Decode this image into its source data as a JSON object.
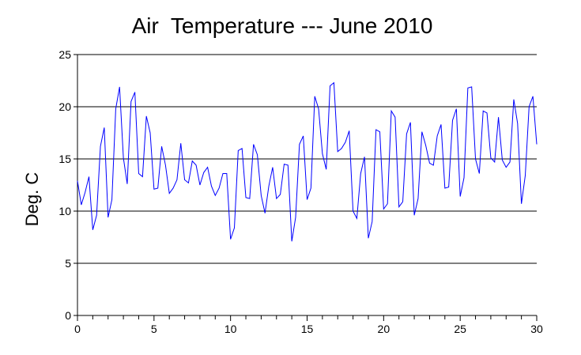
{
  "chart_data": {
    "type": "line",
    "title": "Air  Temperature --- June 2010",
    "xlabel": "",
    "ylabel": "Deg. C",
    "xlim": [
      0,
      30
    ],
    "ylim": [
      0,
      25
    ],
    "x_ticks": [
      "0",
      "5",
      "10",
      "15",
      "20",
      "25",
      "30"
    ],
    "y_ticks": [
      "0",
      "5",
      "10",
      "15",
      "20",
      "25"
    ],
    "grid": "horizontal",
    "legend": "none",
    "colors": {
      "series": "#0000ff",
      "grid": "#000000",
      "axis": "#000000"
    },
    "series": [
      {
        "x": [
          0.0,
          0.25,
          0.5,
          0.75,
          1.0,
          1.25,
          1.5,
          1.75,
          2.0,
          2.25,
          2.5,
          2.75,
          3.0,
          3.25,
          3.5,
          3.75,
          4.0,
          4.25,
          4.5,
          4.75,
          5.0,
          5.25,
          5.5,
          5.75,
          6.0,
          6.25,
          6.5,
          6.75,
          7.0,
          7.25,
          7.5,
          7.75,
          8.0,
          8.25,
          8.5,
          8.75,
          9.0,
          9.25,
          9.5,
          9.75,
          10.0,
          10.25,
          10.5,
          10.75,
          11.0,
          11.25,
          11.5,
          11.75,
          12.0,
          12.25,
          12.5,
          12.75,
          13.0,
          13.25,
          13.5,
          13.75,
          14.0,
          14.25,
          14.5,
          14.75,
          15.0,
          15.25,
          15.5,
          15.75,
          16.0,
          16.25,
          16.5,
          16.75,
          17.0,
          17.25,
          17.5,
          17.75,
          18.0,
          18.25,
          18.5,
          18.75,
          19.0,
          19.25,
          19.5,
          19.75,
          20.0,
          20.25,
          20.5,
          20.75,
          21.0,
          21.25,
          21.5,
          21.75,
          22.0,
          22.25,
          22.5,
          22.75,
          23.0,
          23.25,
          23.5,
          23.75,
          24.0,
          24.25,
          24.5,
          24.75,
          25.0,
          25.25,
          25.5,
          25.75,
          26.0,
          26.25,
          26.5,
          26.75,
          27.0,
          27.25,
          27.5,
          27.75,
          28.0,
          28.25,
          28.5,
          28.75,
          29.0,
          29.25,
          29.5,
          29.75,
          30.0
        ],
        "values": [
          12.9,
          10.6,
          11.8,
          13.3,
          8.2,
          9.6,
          16.2,
          18.0,
          9.4,
          11.1,
          19.8,
          21.9,
          15.1,
          12.6,
          20.5,
          21.4,
          13.6,
          13.3,
          19.1,
          17.5,
          12.1,
          12.2,
          16.2,
          14.4,
          11.7,
          12.2,
          13.0,
          16.5,
          13.0,
          12.7,
          14.8,
          14.4,
          12.5,
          13.7,
          14.2,
          12.4,
          11.5,
          12.2,
          13.6,
          13.6,
          7.3,
          8.4,
          15.8,
          16.0,
          11.3,
          11.2,
          16.4,
          15.4,
          11.5,
          9.8,
          12.4,
          14.2,
          11.2,
          11.6,
          14.5,
          14.4,
          7.1,
          9.4,
          16.4,
          17.2,
          11.1,
          12.2,
          21.0,
          19.8,
          15.5,
          14.0,
          22.0,
          22.3,
          15.7,
          16.0,
          16.6,
          17.7,
          10.0,
          9.3,
          13.6,
          15.2,
          7.4,
          9.0,
          17.8,
          17.6,
          10.2,
          10.7,
          19.6,
          19.0,
          10.4,
          10.9,
          17.4,
          18.5,
          9.6,
          11.2,
          17.6,
          16.3,
          14.6,
          14.4,
          17.2,
          18.3,
          12.2,
          12.3,
          18.7,
          19.8,
          11.4,
          13.2,
          21.8,
          21.9,
          15.0,
          13.6,
          19.6,
          19.4,
          15.1,
          14.7,
          19.0,
          14.9,
          14.2,
          14.7,
          20.7,
          18.4,
          10.7,
          13.4,
          20.0,
          21.0,
          16.4
        ]
      }
    ]
  }
}
